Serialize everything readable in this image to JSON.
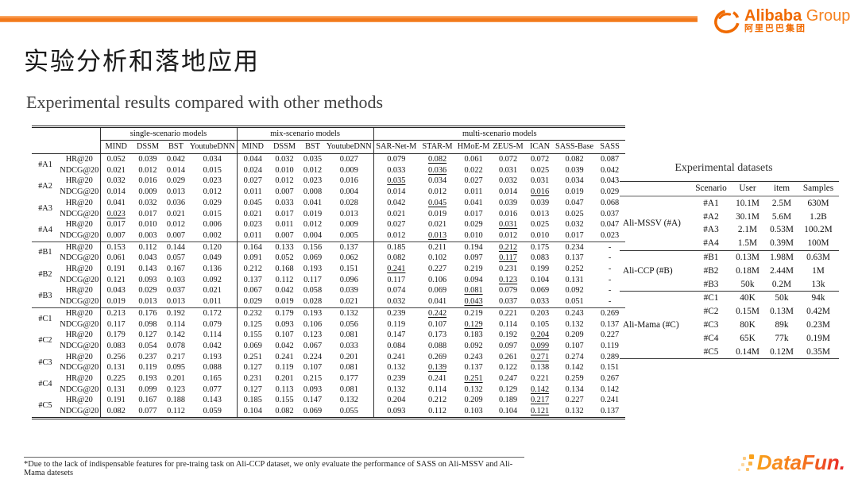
{
  "slide": {
    "title": "实验分析和落地应用",
    "subtitle": "Experimental results compared with other methods",
    "footnote": "*Due to the lack of indispensable features for pre-traing task on Ali-CCP dataset, we only evaluate the performance of SASS on Ali-MSSV and Ali-Mama datesets"
  },
  "branding": {
    "alibaba_logo_text": "Alibaba",
    "alibaba_logo_suffix": " Group",
    "alibaba_logo_cn": "阿里巴巴集团",
    "datafun_logo_text": "DataFun.",
    "accent_orange": "#f47a1f",
    "alibaba_orange": "#f06a00",
    "datafun_gradient_start": "#f9a11b",
    "datafun_gradient_end": "#e8242b"
  },
  "results_table": {
    "groups": [
      {
        "label": "single-scenario models",
        "columns": [
          "MIND",
          "DSSM",
          "BST",
          "YoutubeDNN"
        ]
      },
      {
        "label": "mix-scenario models",
        "columns": [
          "MIND",
          "DSSM",
          "BST",
          "YoutubeDNN"
        ]
      },
      {
        "label": "multi-scenario models",
        "columns": [
          "SAR-Net-M",
          "STAR-M",
          "HMoE-M",
          "ZEUS-M",
          "ICAN",
          "SASS-Base",
          "SASS"
        ]
      }
    ],
    "bold_header_columns": [
      "SASS"
    ],
    "sections": [
      {
        "scenarios": [
          {
            "scenario": "#A1",
            "metrics": [
              {
                "metric": "HR@20",
                "values": [
                  "0.052",
                  "0.039",
                  "0.042",
                  "0.034",
                  "0.044",
                  "0.032",
                  "0.035",
                  "0.027",
                  "0.079",
                  "0.082",
                  "0.061",
                  "0.072",
                  "0.072",
                  "0.082",
                  "0.087"
                ],
                "underline": [
                  9
                ],
                "bold": [
                  14
                ]
              },
              {
                "metric": "NDCG@20",
                "values": [
                  "0.021",
                  "0.012",
                  "0.014",
                  "0.015",
                  "0.024",
                  "0.010",
                  "0.012",
                  "0.009",
                  "0.033",
                  "0.036",
                  "0.022",
                  "0.031",
                  "0.025",
                  "0.039",
                  "0.042"
                ],
                "underline": [
                  9
                ],
                "bold": [
                  14
                ]
              }
            ]
          },
          {
            "scenario": "#A2",
            "metrics": [
              {
                "metric": "HR@20",
                "values": [
                  "0.032",
                  "0.016",
                  "0.029",
                  "0.023",
                  "0.027",
                  "0.012",
                  "0.023",
                  "0.016",
                  "0.035",
                  "0.034",
                  "0.027",
                  "0.032",
                  "0.031",
                  "0.034",
                  "0.043"
                ],
                "underline": [
                  8
                ],
                "bold": [
                  14
                ]
              },
              {
                "metric": "NDCG@20",
                "values": [
                  "0.014",
                  "0.009",
                  "0.013",
                  "0.012",
                  "0.011",
                  "0.007",
                  "0.008",
                  "0.004",
                  "0.014",
                  "0.012",
                  "0.011",
                  "0.014",
                  "0.016",
                  "0.019",
                  "0.029"
                ],
                "underline": [
                  12
                ],
                "bold": [
                  14
                ]
              }
            ]
          },
          {
            "scenario": "#A3",
            "metrics": [
              {
                "metric": "HR@20",
                "values": [
                  "0.041",
                  "0.032",
                  "0.036",
                  "0.029",
                  "0.045",
                  "0.033",
                  "0.041",
                  "0.028",
                  "0.042",
                  "0.045",
                  "0.041",
                  "0.039",
                  "0.039",
                  "0.047",
                  "0.068"
                ],
                "underline": [
                  9
                ],
                "bold": [
                  14
                ]
              },
              {
                "metric": "NDCG@20",
                "values": [
                  "0.023",
                  "0.017",
                  "0.021",
                  "0.015",
                  "0.021",
                  "0.017",
                  "0.019",
                  "0.013",
                  "0.021",
                  "0.019",
                  "0.017",
                  "0.016",
                  "0.013",
                  "0.025",
                  "0.037"
                ],
                "underline": [
                  0
                ],
                "bold": [
                  14
                ]
              }
            ]
          },
          {
            "scenario": "#A4",
            "metrics": [
              {
                "metric": "HR@20",
                "values": [
                  "0.017",
                  "0.010",
                  "0.012",
                  "0.006",
                  "0.023",
                  "0.011",
                  "0.012",
                  "0.009",
                  "0.027",
                  "0.021",
                  "0.029",
                  "0.031",
                  "0.025",
                  "0.032",
                  "0.047"
                ],
                "underline": [
                  11
                ],
                "bold": [
                  14
                ]
              },
              {
                "metric": "NDCG@20",
                "values": [
                  "0.007",
                  "0.003",
                  "0.007",
                  "0.002",
                  "0.011",
                  "0.007",
                  "0.004",
                  "0.005",
                  "0.012",
                  "0.013",
                  "0.010",
                  "0.012",
                  "0.010",
                  "0.017",
                  "0.023"
                ],
                "underline": [
                  9
                ],
                "bold": [
                  14
                ]
              }
            ]
          }
        ]
      },
      {
        "scenarios": [
          {
            "scenario": "#B1",
            "metrics": [
              {
                "metric": "HR@20",
                "values": [
                  "0.153",
                  "0.112",
                  "0.144",
                  "0.120",
                  "0.164",
                  "0.133",
                  "0.156",
                  "0.137",
                  "0.185",
                  "0.211",
                  "0.194",
                  "0.212",
                  "0.175",
                  "0.234",
                  "-"
                ],
                "underline": [
                  11
                ],
                "bold": [
                  13
                ]
              },
              {
                "metric": "NDCG@20",
                "values": [
                  "0.061",
                  "0.043",
                  "0.057",
                  "0.049",
                  "0.091",
                  "0.052",
                  "0.069",
                  "0.062",
                  "0.082",
                  "0.102",
                  "0.097",
                  "0.117",
                  "0.083",
                  "0.137",
                  "-"
                ],
                "underline": [
                  11
                ],
                "bold": [
                  13
                ]
              }
            ]
          },
          {
            "scenario": "#B2",
            "metrics": [
              {
                "metric": "HR@20",
                "values": [
                  "0.191",
                  "0.143",
                  "0.167",
                  "0.136",
                  "0.212",
                  "0.168",
                  "0.193",
                  "0.151",
                  "0.241",
                  "0.227",
                  "0.219",
                  "0.231",
                  "0.199",
                  "0.252",
                  "-"
                ],
                "underline": [
                  8
                ],
                "bold": [
                  13
                ]
              },
              {
                "metric": "NDCG@20",
                "values": [
                  "0.121",
                  "0.093",
                  "0.103",
                  "0.092",
                  "0.137",
                  "0.112",
                  "0.117",
                  "0.096",
                  "0.117",
                  "0.106",
                  "0.094",
                  "0.123",
                  "0.104",
                  "0.131",
                  "-"
                ],
                "underline": [
                  11
                ],
                "bold": [
                  13
                ]
              }
            ]
          },
          {
            "scenario": "#B3",
            "metrics": [
              {
                "metric": "HR@20",
                "values": [
                  "0.043",
                  "0.029",
                  "0.037",
                  "0.021",
                  "0.067",
                  "0.042",
                  "0.058",
                  "0.039",
                  "0.074",
                  "0.069",
                  "0.081",
                  "0.079",
                  "0.069",
                  "0.092",
                  "-"
                ],
                "underline": [
                  10
                ],
                "bold": [
                  13
                ]
              },
              {
                "metric": "NDCG@20",
                "values": [
                  "0.019",
                  "0.013",
                  "0.013",
                  "0.011",
                  "0.029",
                  "0.019",
                  "0.028",
                  "0.021",
                  "0.032",
                  "0.041",
                  "0.043",
                  "0.037",
                  "0.033",
                  "0.051",
                  "-"
                ],
                "underline": [
                  10
                ],
                "bold": [
                  13
                ]
              }
            ]
          }
        ]
      },
      {
        "scenarios": [
          {
            "scenario": "#C1",
            "metrics": [
              {
                "metric": "HR@20",
                "values": [
                  "0.213",
                  "0.176",
                  "0.192",
                  "0.172",
                  "0.232",
                  "0.179",
                  "0.193",
                  "0.132",
                  "0.239",
                  "0.242",
                  "0.219",
                  "0.221",
                  "0.203",
                  "0.243",
                  "0.269"
                ],
                "underline": [
                  9
                ],
                "bold": [
                  14
                ]
              },
              {
                "metric": "NDCG@20",
                "values": [
                  "0.117",
                  "0.098",
                  "0.114",
                  "0.079",
                  "0.125",
                  "0.093",
                  "0.106",
                  "0.056",
                  "0.119",
                  "0.107",
                  "0.129",
                  "0.114",
                  "0.105",
                  "0.132",
                  "0.137"
                ],
                "underline": [
                  10
                ],
                "bold": [
                  14
                ]
              }
            ]
          },
          {
            "scenario": "#C2",
            "metrics": [
              {
                "metric": "HR@20",
                "values": [
                  "0.179",
                  "0.127",
                  "0.142",
                  "0.114",
                  "0.155",
                  "0.107",
                  "0.123",
                  "0.081",
                  "0.147",
                  "0.173",
                  "0.183",
                  "0.192",
                  "0.204",
                  "0.209",
                  "0.227"
                ],
                "underline": [
                  12
                ],
                "bold": [
                  14
                ]
              },
              {
                "metric": "NDCG@20",
                "values": [
                  "0.083",
                  "0.054",
                  "0.078",
                  "0.042",
                  "0.069",
                  "0.042",
                  "0.067",
                  "0.033",
                  "0.084",
                  "0.088",
                  "0.092",
                  "0.097",
                  "0.099",
                  "0.107",
                  "0.119"
                ],
                "underline": [
                  12
                ],
                "bold": [
                  14
                ]
              }
            ]
          },
          {
            "scenario": "#C3",
            "metrics": [
              {
                "metric": "HR@20",
                "values": [
                  "0.256",
                  "0.237",
                  "0.217",
                  "0.193",
                  "0.251",
                  "0.241",
                  "0.224",
                  "0.201",
                  "0.241",
                  "0.269",
                  "0.243",
                  "0.261",
                  "0.271",
                  "0.274",
                  "0.289"
                ],
                "underline": [
                  12
                ],
                "bold": [
                  14
                ]
              },
              {
                "metric": "NDCG@20",
                "values": [
                  "0.131",
                  "0.119",
                  "0.095",
                  "0.088",
                  "0.127",
                  "0.119",
                  "0.107",
                  "0.081",
                  "0.132",
                  "0.139",
                  "0.137",
                  "0.122",
                  "0.138",
                  "0.142",
                  "0.151"
                ],
                "underline": [
                  9
                ],
                "bold": [
                  14
                ]
              }
            ]
          },
          {
            "scenario": "#C4",
            "metrics": [
              {
                "metric": "HR@20",
                "values": [
                  "0.225",
                  "0.193",
                  "0.201",
                  "0.165",
                  "0.231",
                  "0.201",
                  "0.215",
                  "0.177",
                  "0.239",
                  "0.241",
                  "0.251",
                  "0.247",
                  "0.221",
                  "0.259",
                  "0.267"
                ],
                "underline": [
                  10
                ],
                "bold": [
                  14
                ]
              },
              {
                "metric": "NDCG@20",
                "values": [
                  "0.131",
                  "0.099",
                  "0.123",
                  "0.077",
                  "0.127",
                  "0.113",
                  "0.093",
                  "0.081",
                  "0.132",
                  "0.114",
                  "0.132",
                  "0.129",
                  "0.142",
                  "0.134",
                  "0.142"
                ],
                "underline": [
                  12
                ],
                "bold": [
                  14
                ]
              }
            ]
          },
          {
            "scenario": "#C5",
            "metrics": [
              {
                "metric": "HR@20",
                "values": [
                  "0.191",
                  "0.167",
                  "0.188",
                  "0.143",
                  "0.185",
                  "0.155",
                  "0.147",
                  "0.132",
                  "0.204",
                  "0.212",
                  "0.209",
                  "0.189",
                  "0.217",
                  "0.227",
                  "0.241"
                ],
                "underline": [
                  12
                ],
                "bold": [
                  14
                ]
              },
              {
                "metric": "NDCG@20",
                "values": [
                  "0.082",
                  "0.077",
                  "0.112",
                  "0.059",
                  "0.104",
                  "0.082",
                  "0.069",
                  "0.055",
                  "0.093",
                  "0.112",
                  "0.103",
                  "0.104",
                  "0.121",
                  "0.132",
                  "0.137"
                ],
                "underline": [
                  12
                ],
                "bold": [
                  14
                ]
              }
            ]
          }
        ]
      }
    ]
  },
  "datasets_table": {
    "title": "Experimental datasets",
    "headers": [
      "Scenario",
      "User",
      "item",
      "Samples"
    ],
    "groups": [
      {
        "name": "Ali-MSSV (#A)",
        "rows": [
          [
            "#A1",
            "10.1M",
            "2.5M",
            "630M"
          ],
          [
            "#A2",
            "30.1M",
            "5.6M",
            "1.2B"
          ],
          [
            "#A3",
            "2.1M",
            "0.53M",
            "100.2M"
          ],
          [
            "#A4",
            "1.5M",
            "0.39M",
            "100M"
          ]
        ]
      },
      {
        "name": "Ali-CCP (#B)",
        "rows": [
          [
            "#B1",
            "0.13M",
            "1.98M",
            "0.63M"
          ],
          [
            "#B2",
            "0.18M",
            "2.44M",
            "1M"
          ],
          [
            "#B3",
            "50k",
            "0.2M",
            "13k"
          ]
        ]
      },
      {
        "name": "Ali-Mama (#C)",
        "rows": [
          [
            "#C1",
            "40K",
            "50k",
            "94k"
          ],
          [
            "#C2",
            "0.15M",
            "0.13M",
            "0.42M"
          ],
          [
            "#C3",
            "80K",
            "89k",
            "0.23M"
          ],
          [
            "#C4",
            "65K",
            "77k",
            "0.19M"
          ],
          [
            "#C5",
            "0.14M",
            "0.12M",
            "0.35M"
          ]
        ]
      }
    ]
  }
}
